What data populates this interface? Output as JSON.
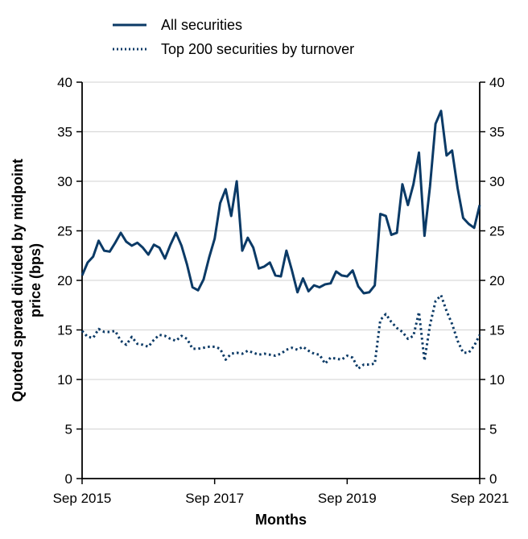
{
  "chart_data": {
    "type": "line",
    "xlabel": "Months",
    "ylabel_line1": "Quoted spread divided by midpoint",
    "ylabel_line2": "price (bps)",
    "ylim": [
      0,
      40
    ],
    "y_ticks": [
      0,
      5,
      10,
      15,
      20,
      25,
      30,
      35,
      40
    ],
    "x_ticks": [
      "Sep 2015",
      "Sep 2017",
      "Sep 2019",
      "Sep 2021"
    ],
    "x_range": [
      "2015-09",
      "2021-09"
    ],
    "grid": "horizontal",
    "legend_position": "top",
    "colors": {
      "series": "#0b3a66",
      "grid": "#d9d9d9",
      "axis": "#000000"
    },
    "x": [
      "2015-09",
      "2015-10",
      "2015-11",
      "2015-12",
      "2016-01",
      "2016-02",
      "2016-03",
      "2016-04",
      "2016-05",
      "2016-06",
      "2016-07",
      "2016-08",
      "2016-09",
      "2016-10",
      "2016-11",
      "2016-12",
      "2017-01",
      "2017-02",
      "2017-03",
      "2017-04",
      "2017-05",
      "2017-06",
      "2017-07",
      "2017-08",
      "2017-09",
      "2017-10",
      "2017-11",
      "2017-12",
      "2018-01",
      "2018-02",
      "2018-03",
      "2018-04",
      "2018-05",
      "2018-06",
      "2018-07",
      "2018-08",
      "2018-09",
      "2018-10",
      "2018-11",
      "2018-12",
      "2019-01",
      "2019-02",
      "2019-03",
      "2019-04",
      "2019-05",
      "2019-06",
      "2019-07",
      "2019-08",
      "2019-09",
      "2019-10",
      "2019-11",
      "2019-12",
      "2020-01",
      "2020-02",
      "2020-03",
      "2020-04",
      "2020-05",
      "2020-06",
      "2020-07",
      "2020-08",
      "2020-09",
      "2020-10",
      "2020-11",
      "2020-12",
      "2021-01",
      "2021-02",
      "2021-03",
      "2021-04",
      "2021-05",
      "2021-06",
      "2021-07",
      "2021-08",
      "2021-09"
    ],
    "series": [
      {
        "name": "All securities",
        "style": "solid",
        "values": [
          20.5,
          21.8,
          22.4,
          24.0,
          23.0,
          22.9,
          23.8,
          24.8,
          23.9,
          23.5,
          23.8,
          23.3,
          22.6,
          23.6,
          23.3,
          22.2,
          23.6,
          24.8,
          23.5,
          21.6,
          19.3,
          19.0,
          20.1,
          22.3,
          24.2,
          27.8,
          29.2,
          26.5,
          30.0,
          23.0,
          24.3,
          23.3,
          21.2,
          21.4,
          21.8,
          20.5,
          20.4,
          23.0,
          21.0,
          18.8,
          20.2,
          18.9,
          19.5,
          19.3,
          19.6,
          19.7,
          20.9,
          20.5,
          20.4,
          21.0,
          19.4,
          18.7,
          18.8,
          19.5,
          26.7,
          26.5,
          24.6,
          24.8,
          29.7,
          27.6,
          29.7,
          32.9,
          24.5,
          29.5,
          35.8,
          37.1,
          32.6,
          33.1,
          29.3,
          26.3,
          25.7,
          25.3,
          27.6
        ]
      },
      {
        "name": "Top 200 securities by turnover",
        "style": "dotted",
        "values": [
          14.9,
          14.3,
          14.2,
          15.1,
          14.8,
          14.8,
          14.9,
          13.9,
          13.5,
          14.3,
          13.6,
          13.5,
          13.3,
          14.0,
          14.5,
          14.4,
          14.1,
          13.9,
          14.4,
          14.1,
          13.1,
          13.1,
          13.2,
          13.3,
          13.3,
          13.1,
          12.0,
          12.6,
          12.7,
          12.6,
          12.9,
          12.7,
          12.5,
          12.6,
          12.5,
          12.4,
          12.6,
          13.0,
          13.2,
          13.0,
          13.3,
          12.9,
          12.6,
          12.5,
          11.6,
          12.2,
          12.1,
          12.0,
          12.4,
          12.2,
          11.1,
          11.5,
          11.5,
          11.6,
          16.0,
          16.6,
          15.8,
          15.2,
          14.8,
          14.1,
          14.4,
          16.8,
          11.9,
          15.5,
          17.9,
          18.5,
          16.9,
          15.6,
          13.9,
          12.7,
          12.7,
          13.4,
          14.5
        ]
      }
    ]
  }
}
